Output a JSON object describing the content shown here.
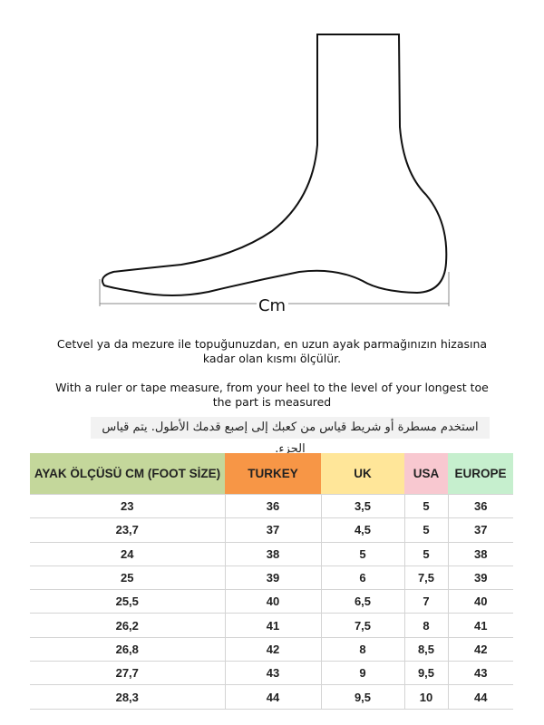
{
  "diagram": {
    "measure_label": "Cm"
  },
  "instructions": {
    "turkish": "Cetvel ya da mezure ile topuğunuzdan, en uzun ayak parmağınızın hizasına kadar olan kısmı ölçülür.",
    "english": "With a ruler or tape measure, from your heel to the level of your longest toe the part is measured",
    "arabic": "استخدم مسطرة أو شريط قياس من كعبك إلى إصبع قدمك الأطول.  يتم قياس الجزء."
  },
  "table": {
    "headers": [
      {
        "label": "AYAK ÖLÇÜSÜ CM (FOOT SİZE)",
        "color": "#c4d79b"
      },
      {
        "label": "TURKEY",
        "color": "#f79646"
      },
      {
        "label": "UK",
        "color": "#ffe699"
      },
      {
        "label": "USA",
        "color": "#f8c8d0"
      },
      {
        "label": "EUROPE",
        "color": "#c6efce"
      }
    ],
    "rows": [
      [
        "23",
        "36",
        "3,5",
        "5",
        "36"
      ],
      [
        "23,7",
        "37",
        "4,5",
        "5",
        "37"
      ],
      [
        "24",
        "38",
        "5",
        "5",
        "38"
      ],
      [
        "25",
        "39",
        "6",
        "7,5",
        "39"
      ],
      [
        "25,5",
        "40",
        "6,5",
        "7",
        "40"
      ],
      [
        "26,2",
        "41",
        "7,5",
        "8",
        "41"
      ],
      [
        "26,8",
        "42",
        "8",
        "8,5",
        "42"
      ],
      [
        "27,7",
        "43",
        "9",
        "9,5",
        "43"
      ],
      [
        "28,3",
        "44",
        "9,5",
        "10",
        "44"
      ]
    ]
  }
}
